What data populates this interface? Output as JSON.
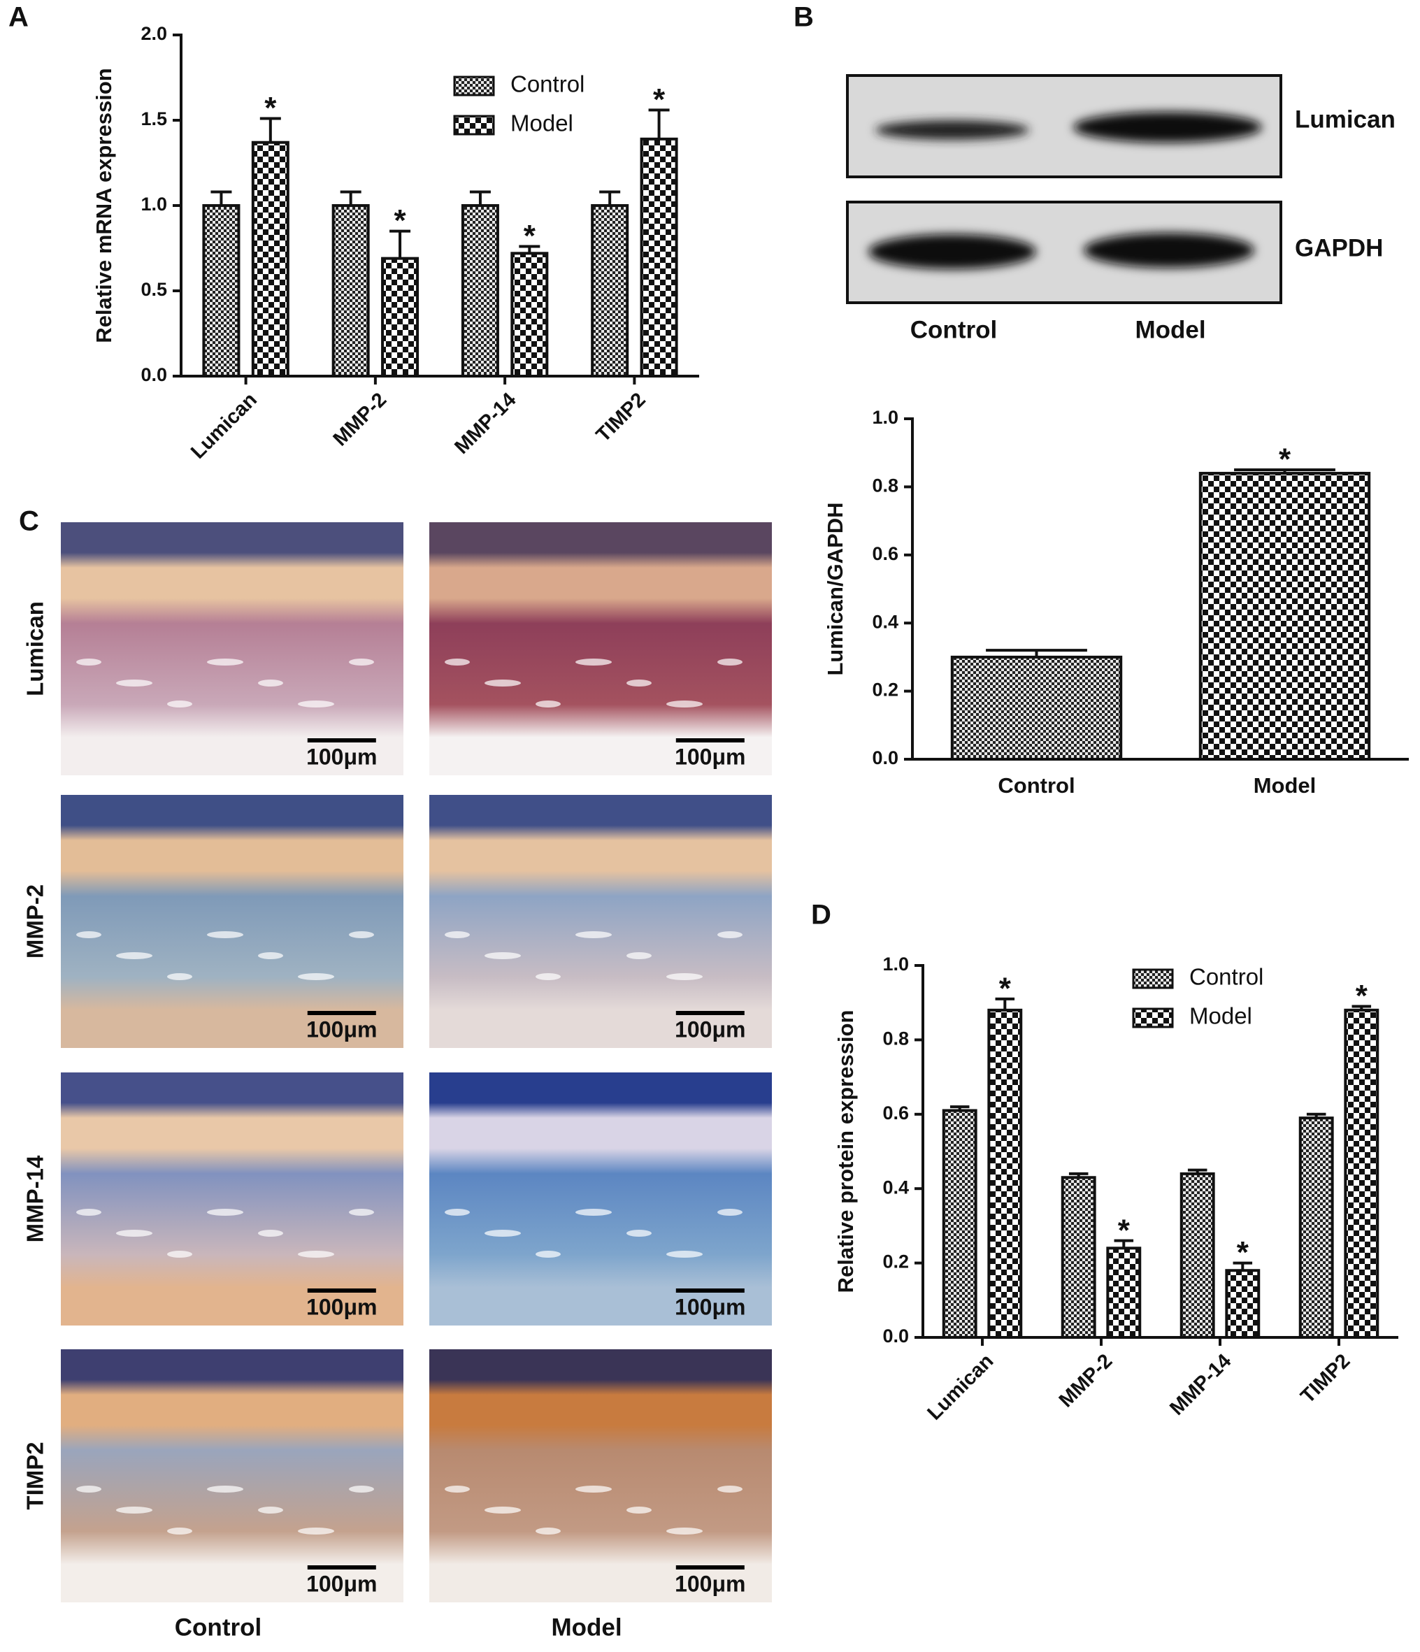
{
  "chart_data": [
    {
      "type": "bar",
      "label": "A",
      "ylabel": "Relative mRNA expression",
      "categories": [
        "Lumican",
        "MMP-2",
        "MMP-14",
        "TIMP2"
      ],
      "series": [
        {
          "name": "Control",
          "pattern": "fine",
          "values": [
            1.0,
            1.0,
            1.0,
            1.0
          ],
          "errors": [
            0.08,
            0.08,
            0.08,
            0.08
          ]
        },
        {
          "name": "Model",
          "pattern": "coarse",
          "values": [
            1.37,
            0.69,
            0.72,
            1.39
          ],
          "errors": [
            0.14,
            0.16,
            0.04,
            0.17
          ],
          "annotations": [
            "*",
            "*",
            "*",
            "*"
          ]
        }
      ],
      "ylim": [
        0,
        2
      ],
      "yticks": [
        {
          "value": 0,
          "label": "0.0"
        },
        0.5,
        {
          "value": 1,
          "label": "1.0"
        },
        1.5,
        {
          "value": 2,
          "label": "2.0"
        }
      ],
      "legend": "top-right",
      "rotate_categories": true
    },
    {
      "type": "bar",
      "ylabel": "Lumican/GAPDH",
      "categories": [
        "Control",
        "Model"
      ],
      "values": [
        0.3,
        0.84
      ],
      "errors": [
        0.02,
        0.01
      ],
      "patterns": [
        "fine",
        "coarse"
      ],
      "annotations": [
        null,
        "*"
      ],
      "ylim": [
        0,
        1
      ],
      "yticks": [
        {
          "value": 0,
          "label": "0.0"
        },
        0.2,
        0.4,
        0.6,
        0.8,
        {
          "value": 1,
          "label": "1.0"
        }
      ],
      "rotate_categories": false
    },
    {
      "type": "bar",
      "label": "D",
      "ylabel": "Relative protein expression",
      "categories": [
        "Lumican",
        "MMP-2",
        "MMP-14",
        "TIMP2"
      ],
      "series": [
        {
          "name": "Control",
          "pattern": "fine",
          "values": [
            0.61,
            0.43,
            0.44,
            0.59
          ],
          "errors": [
            0.01,
            0.01,
            0.01,
            0.01
          ]
        },
        {
          "name": "Model",
          "pattern": "coarse",
          "values": [
            0.88,
            0.24,
            0.18,
            0.88
          ],
          "errors": [
            0.03,
            0.02,
            0.02,
            0.01
          ],
          "annotations": [
            "*",
            "*",
            "*",
            "*"
          ]
        }
      ],
      "ylim": [
        0,
        1
      ],
      "yticks": [
        {
          "value": 0,
          "label": "0.0"
        },
        0.2,
        0.4,
        0.6,
        0.8,
        {
          "value": 1,
          "label": "1.0"
        }
      ],
      "legend": "top-right",
      "rotate_categories": true
    }
  ],
  "blot": {
    "label": "B",
    "bands": [
      "Lumican",
      "GAPDH"
    ],
    "lanes": [
      "Control",
      "Model"
    ]
  },
  "histology": {
    "label": "C",
    "rows": [
      "Lumican",
      "MMP-2",
      "MMP-14",
      "TIMP2"
    ],
    "columns": [
      "Control",
      "Model"
    ],
    "scale_bar": "100μm"
  }
}
